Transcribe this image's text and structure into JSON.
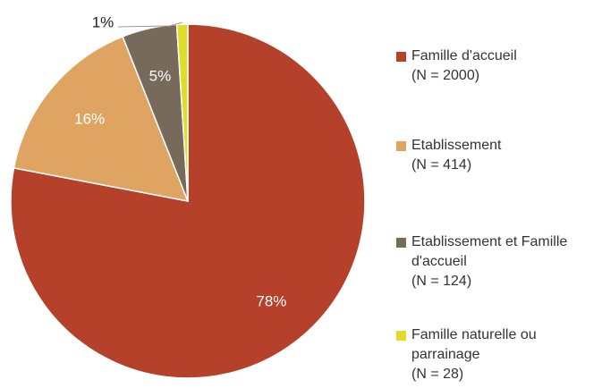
{
  "chart_data": {
    "type": "pie",
    "series": [
      {
        "name": "Famille d'accueil\n(N = 2000)",
        "color": "#b5412a"
      },
      {
        "name": "Etablissement\n(N = 414)",
        "color": "#e0a462"
      },
      {
        "name": "Etablissement et Famille\nd'accueil\n(N = 124)",
        "color": "#786a5a"
      },
      {
        "name": "Famille naturelle ou\nparrainage\n(N = 28)",
        "color": "#dede2a"
      }
    ],
    "values": [
      78,
      16,
      5,
      1
    ],
    "value_labels": [
      "78%",
      "16%",
      "5%",
      "1%"
    ],
    "legend": "right"
  }
}
